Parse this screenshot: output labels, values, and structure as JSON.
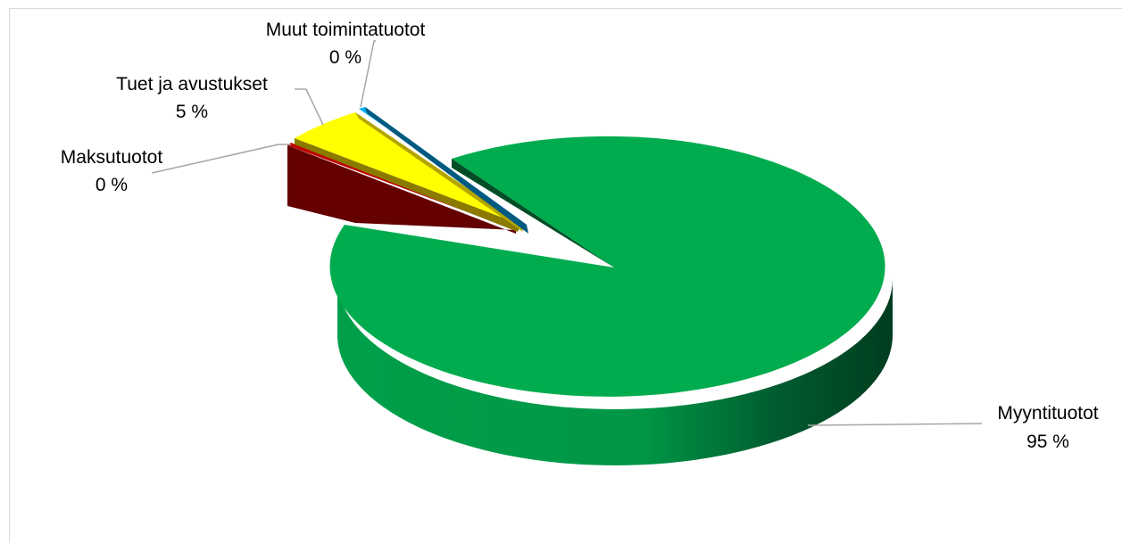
{
  "chart_data": {
    "type": "pie",
    "style": "3d-exploded",
    "title": "",
    "legend": "none",
    "slices": [
      {
        "name": "Myyntituotot",
        "value": 95,
        "label": "95 %",
        "color": "#00ac4e",
        "dark": "#00522a"
      },
      {
        "name": "Maksutuotot",
        "value": 0.3,
        "label": "0 %",
        "color": "#c00000",
        "dark": "#640000"
      },
      {
        "name": "Tuet ja avustukset",
        "value": 4.5,
        "label": "5 %",
        "color": "#ffff00",
        "dark": "#8a7a00"
      },
      {
        "name": "Muut toimintatuotot",
        "value": 0.2,
        "label": "0 %",
        "color": "#00b0f0",
        "dark": "#005a80"
      }
    ]
  }
}
